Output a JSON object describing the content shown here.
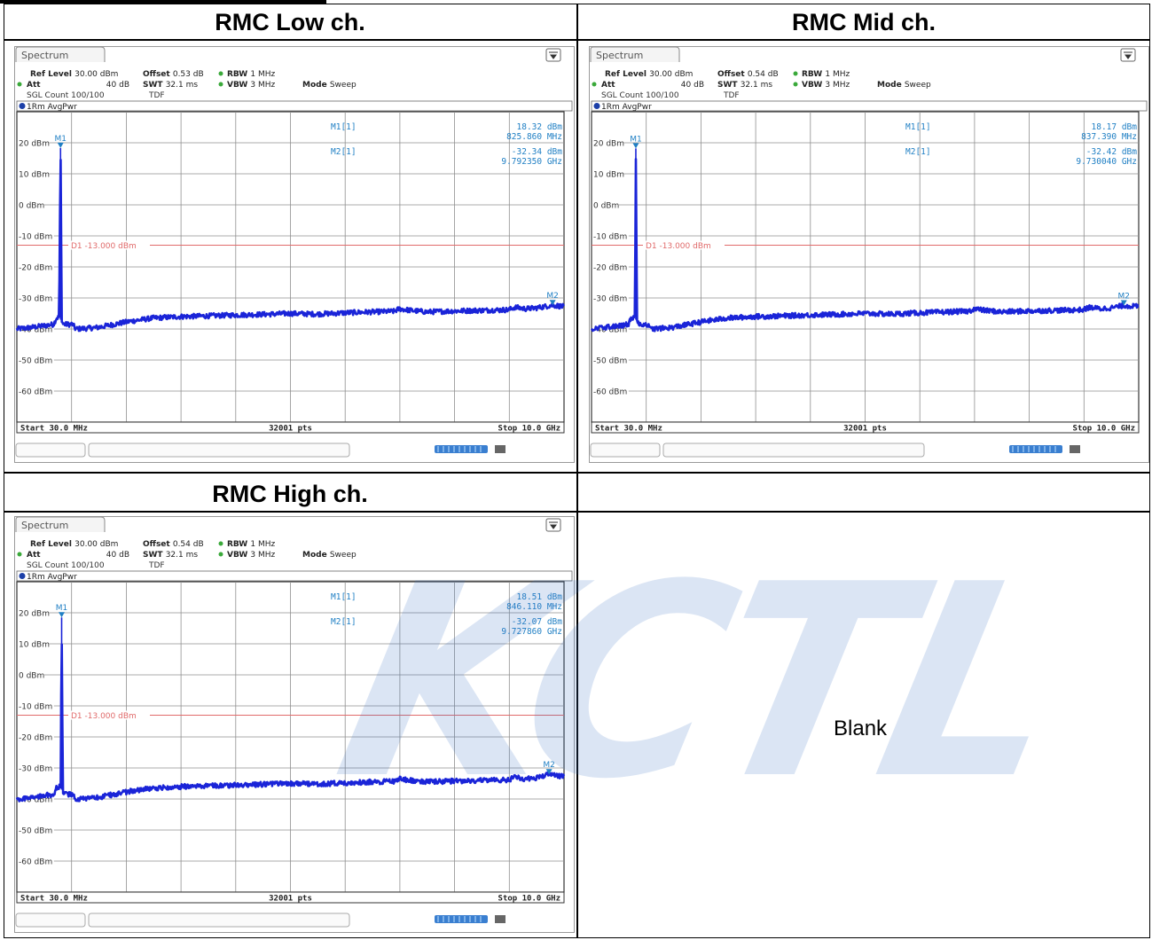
{
  "table": {
    "headers": [
      "RMC Low ch.",
      "RMC Mid ch.",
      "RMC High ch.",
      ""
    ],
    "blank_text": "Blank",
    "watermark": "KCTL"
  },
  "chart_data": [
    {
      "type": "line",
      "panel_title": "Spectrum",
      "settings": {
        "ref_level_label": "Ref Level",
        "ref_level_value": "30.00 dBm",
        "offset_label": "Offset",
        "offset_value": "0.53 dB",
        "rbw_label": "RBW",
        "rbw_value": "1 MHz",
        "att_label": "Att",
        "att_value": "40 dB",
        "swt_label": "SWT",
        "swt_value": "32.1 ms",
        "vbw_label": "VBW",
        "vbw_value": "3 MHz",
        "mode_label": "Mode",
        "mode_value": "Sweep",
        "count_text": "SGL Count 100/100",
        "tdf_text": "TDF"
      },
      "trace_label": "1Rm AvgPwr",
      "y_ticks": [
        "20 dBm",
        "10 dBm",
        "0 dBm",
        "-10 dBm",
        "-20 dBm",
        "-30 dBm",
        "-40 dBm",
        "-50 dBm",
        "-60 dBm"
      ],
      "ylim": [
        -70,
        30
      ],
      "xlim": [
        0.03,
        10.0
      ],
      "x_start_label": "Start 30.0 MHz",
      "x_pts_label": "32001 pts",
      "x_stop_label": "Stop 10.0 GHz",
      "limit_line": {
        "value": -13.0,
        "label": "D1  -13.000 dBm"
      },
      "markers": [
        {
          "name": "M1",
          "readout_label": "M1[1]",
          "freq_ghz": 0.82586,
          "level_dbm": 18.32,
          "level_text": "18.32 dBm",
          "freq_text": "825.860 MHz"
        },
        {
          "name": "M2",
          "readout_label": "M2[1]",
          "freq_ghz": 9.79235,
          "level_dbm": -32.34,
          "level_text": "-32.34 dBm",
          "freq_text": "9.792350 GHz"
        }
      ],
      "trace": {
        "x": [
          0.03,
          0.3,
          0.5,
          0.7,
          0.75,
          0.79,
          0.8,
          0.82586,
          0.85,
          0.87,
          0.9,
          1.05,
          1.1,
          1.3,
          1.5,
          1.8,
          2.1,
          2.5,
          3.0,
          3.5,
          4.0,
          4.5,
          5.0,
          5.5,
          6.0,
          6.5,
          6.9,
          7.0,
          7.2,
          7.5,
          8.0,
          8.5,
          9.0,
          9.1,
          9.3,
          9.5,
          9.79235,
          10.0
        ],
        "y": [
          -40.0,
          -39.5,
          -39.0,
          -38.5,
          -36.5,
          -36.2,
          -36.0,
          18.32,
          -37.5,
          -38.3,
          -38.5,
          -38.5,
          -40.0,
          -39.8,
          -39.5,
          -38.5,
          -37.5,
          -36.5,
          -36.0,
          -35.8,
          -35.5,
          -35.3,
          -35.0,
          -35.2,
          -34.8,
          -34.5,
          -34.3,
          -33.5,
          -34.0,
          -34.5,
          -34.2,
          -34.0,
          -33.8,
          -33.0,
          -33.5,
          -33.2,
          -32.34,
          -32.8
        ]
      }
    },
    {
      "type": "line",
      "panel_title": "Spectrum",
      "settings": {
        "ref_level_label": "Ref Level",
        "ref_level_value": "30.00 dBm",
        "offset_label": "Offset",
        "offset_value": "0.54 dB",
        "rbw_label": "RBW",
        "rbw_value": "1 MHz",
        "att_label": "Att",
        "att_value": "40 dB",
        "swt_label": "SWT",
        "swt_value": "32.1 ms",
        "vbw_label": "VBW",
        "vbw_value": "3 MHz",
        "mode_label": "Mode",
        "mode_value": "Sweep",
        "count_text": "SGL Count 100/100",
        "tdf_text": "TDF"
      },
      "trace_label": "1Rm AvgPwr",
      "y_ticks": [
        "20 dBm",
        "10 dBm",
        "0 dBm",
        "-10 dBm",
        "-20 dBm",
        "-30 dBm",
        "-40 dBm",
        "-50 dBm",
        "-60 dBm"
      ],
      "ylim": [
        -70,
        30
      ],
      "xlim": [
        0.03,
        10.0
      ],
      "x_start_label": "Start 30.0 MHz",
      "x_pts_label": "32001 pts",
      "x_stop_label": "Stop 10.0 GHz",
      "limit_line": {
        "value": -13.0,
        "label": "D1  -13.000 dBm"
      },
      "markers": [
        {
          "name": "M1",
          "readout_label": "M1[1]",
          "freq_ghz": 0.83739,
          "level_dbm": 18.17,
          "level_text": "18.17 dBm",
          "freq_text": "837.390 MHz"
        },
        {
          "name": "M2",
          "readout_label": "M2[1]",
          "freq_ghz": 9.73004,
          "level_dbm": -32.42,
          "level_text": "-32.42 dBm",
          "freq_text": "9.730040 GHz"
        }
      ],
      "trace": {
        "x": [
          0.03,
          0.3,
          0.5,
          0.7,
          0.75,
          0.8,
          0.82,
          0.83739,
          0.86,
          0.88,
          0.9,
          1.05,
          1.1,
          1.3,
          1.5,
          1.8,
          2.1,
          2.5,
          3.0,
          3.5,
          4.0,
          4.5,
          5.0,
          5.5,
          6.0,
          6.5,
          6.9,
          7.0,
          7.2,
          7.5,
          8.0,
          8.5,
          9.0,
          9.1,
          9.3,
          9.5,
          9.73004,
          10.0
        ],
        "y": [
          -40.0,
          -39.5,
          -39.0,
          -38.5,
          -36.8,
          -36.4,
          -36.2,
          18.17,
          -37.5,
          -38.3,
          -38.5,
          -38.5,
          -40.0,
          -39.8,
          -39.5,
          -38.5,
          -37.5,
          -36.5,
          -36.0,
          -35.8,
          -35.5,
          -35.3,
          -35.0,
          -35.2,
          -34.8,
          -34.5,
          -34.3,
          -33.5,
          -34.0,
          -34.5,
          -34.2,
          -34.0,
          -33.8,
          -33.0,
          -33.5,
          -33.2,
          -32.42,
          -32.8
        ]
      }
    },
    {
      "type": "line",
      "panel_title": "Spectrum",
      "settings": {
        "ref_level_label": "Ref Level",
        "ref_level_value": "30.00 dBm",
        "offset_label": "Offset",
        "offset_value": "0.54 dB",
        "rbw_label": "RBW",
        "rbw_value": "1 MHz",
        "att_label": "Att",
        "att_value": "40 dB",
        "swt_label": "SWT",
        "swt_value": "32.1 ms",
        "vbw_label": "VBW",
        "vbw_value": "3 MHz",
        "mode_label": "Mode",
        "mode_value": "Sweep",
        "count_text": "SGL Count 100/100",
        "tdf_text": "TDF"
      },
      "trace_label": "1Rm AvgPwr",
      "y_ticks": [
        "20 dBm",
        "10 dBm",
        "0 dBm",
        "-10 dBm",
        "-20 dBm",
        "-30 dBm",
        "-40 dBm",
        "-50 dBm",
        "-60 dBm"
      ],
      "ylim": [
        -70,
        30
      ],
      "xlim": [
        0.03,
        10.0
      ],
      "x_start_label": "Start 30.0 MHz",
      "x_pts_label": "32001 pts",
      "x_stop_label": "Stop 10.0 GHz",
      "limit_line": {
        "value": -13.0,
        "label": "D1  -13.000 dBm"
      },
      "markers": [
        {
          "name": "M1",
          "readout_label": "M1[1]",
          "freq_ghz": 0.84611,
          "level_dbm": 18.51,
          "level_text": "18.51 dBm",
          "freq_text": "846.110 MHz"
        },
        {
          "name": "M2",
          "readout_label": "M2[1]",
          "freq_ghz": 9.72786,
          "level_dbm": -32.07,
          "level_text": "-32.07 dBm",
          "freq_text": "9.727860 GHz"
        }
      ],
      "trace": {
        "x": [
          0.03,
          0.3,
          0.5,
          0.7,
          0.75,
          0.8,
          0.83,
          0.84611,
          0.87,
          0.89,
          0.92,
          1.05,
          1.1,
          1.3,
          1.5,
          1.8,
          2.1,
          2.5,
          3.0,
          3.5,
          4.0,
          4.5,
          5.0,
          5.5,
          6.0,
          6.5,
          6.9,
          7.0,
          7.2,
          7.5,
          8.0,
          8.5,
          9.0,
          9.1,
          9.3,
          9.5,
          9.72786,
          10.0
        ],
        "y": [
          -40.0,
          -39.5,
          -39.0,
          -38.5,
          -36.5,
          -36.2,
          -36.0,
          18.51,
          -37.5,
          -38.3,
          -38.5,
          -38.5,
          -40.0,
          -39.8,
          -39.5,
          -38.5,
          -37.5,
          -36.5,
          -36.0,
          -35.8,
          -35.5,
          -35.3,
          -35.0,
          -35.2,
          -34.8,
          -34.5,
          -34.3,
          -33.5,
          -34.0,
          -34.5,
          -34.2,
          -34.0,
          -33.8,
          -33.0,
          -33.5,
          -33.2,
          -32.07,
          -32.8
        ]
      }
    }
  ]
}
